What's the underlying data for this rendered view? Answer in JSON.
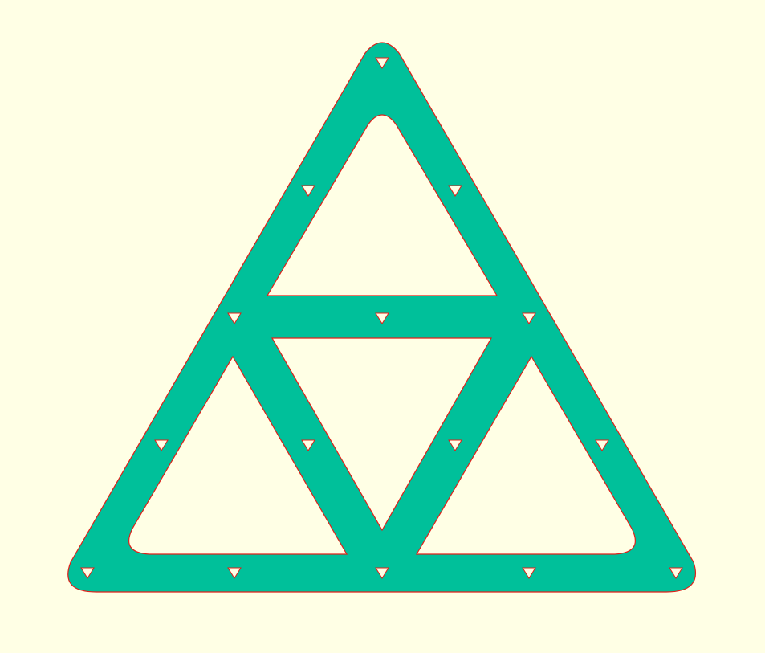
{
  "colors": {
    "background": "#ffffe5",
    "plate_fill": "#00c09a",
    "outline": "#e0201a",
    "hole_fill": "#ffffe5"
  },
  "shape": {
    "kind": "triangular-frame-plate",
    "subdivision": 2,
    "openings": 4,
    "triangular_holes": 15
  }
}
